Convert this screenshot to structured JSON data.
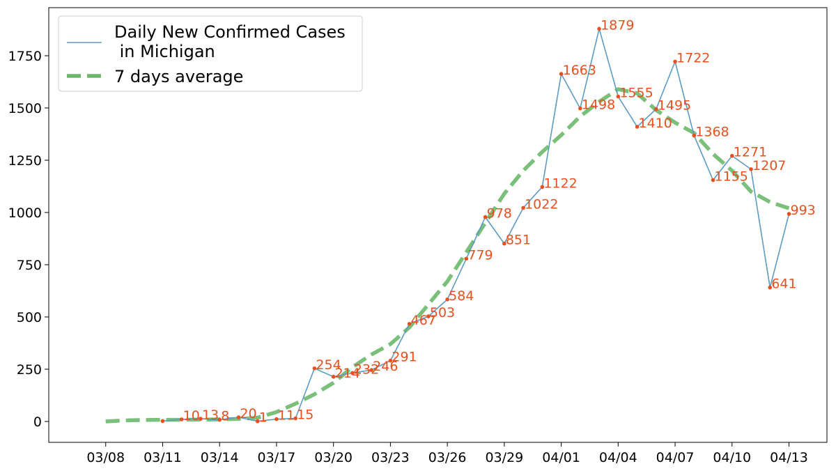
{
  "chart_data": {
    "type": "line",
    "title": "",
    "xlabel": "",
    "ylabel": "",
    "x_start": "03/08",
    "x_tick_labels": [
      "03/08",
      "03/11",
      "03/14",
      "03/17",
      "03/20",
      "03/23",
      "03/26",
      "03/29",
      "04/01",
      "04/04",
      "04/07",
      "04/10",
      "04/13"
    ],
    "xlim": [
      "03/05",
      "04/15"
    ],
    "y_ticks": [
      0,
      250,
      500,
      750,
      1000,
      1250,
      1500,
      1750
    ],
    "y_tick_labels": [
      "0",
      "250",
      "500",
      "750",
      "1000",
      "1250",
      "1500",
      "1750"
    ],
    "ylim": [
      -100,
      1980
    ],
    "grid": false,
    "legend": "top-left",
    "series": [
      {
        "name": "Daily New Confirmed Cases\n in Michigan",
        "color": "#5b9bc3",
        "style": "solid",
        "marker_color": "#e8501f",
        "label_color": "#e8501f",
        "x": [
          "03/11",
          "03/12",
          "03/13",
          "03/14",
          "03/15",
          "03/16",
          "03/17",
          "03/18",
          "03/19",
          "03/20",
          "03/21",
          "03/22",
          "03/23",
          "03/24",
          "03/25",
          "03/26",
          "03/27",
          "03/28",
          "03/29",
          "03/30",
          "03/31",
          "04/01",
          "04/02",
          "04/03",
          "04/04",
          "04/05",
          "04/06",
          "04/07",
          "04/08",
          "04/09",
          "04/10",
          "04/11",
          "04/12",
          "04/13"
        ],
        "values": [
          2,
          10,
          13,
          8,
          20,
          1,
          11,
          15,
          254,
          214,
          232,
          246,
          291,
          467,
          503,
          584,
          779,
          978,
          851,
          1022,
          1122,
          1663,
          1498,
          1879,
          1555,
          1410,
          1495,
          1722,
          1368,
          1155,
          1271,
          1207,
          641,
          993
        ],
        "labels": [
          "",
          "10",
          "13",
          "8",
          "20",
          "1",
          "11",
          "15",
          "254",
          "214",
          "232",
          "246",
          "291",
          "467",
          "503",
          "584",
          "779",
          "978",
          "851",
          "1022",
          "1122",
          "1663",
          "1498",
          "1879",
          "1555",
          "1410",
          "1495",
          "1722",
          "1368",
          "1155",
          "1271",
          "1207",
          "641",
          "993"
        ]
      },
      {
        "name": "7 days average",
        "color": "#6bb86b",
        "style": "dashed",
        "x": [
          "03/08",
          "03/09",
          "03/10",
          "03/11",
          "03/12",
          "03/13",
          "03/14",
          "03/15",
          "03/16",
          "03/17",
          "03/18",
          "03/19",
          "03/20",
          "03/21",
          "03/22",
          "03/23",
          "03/24",
          "03/25",
          "03/26",
          "03/27",
          "03/28",
          "03/29",
          "03/30",
          "03/31",
          "04/01",
          "04/02",
          "04/03",
          "04/04",
          "04/05",
          "04/06",
          "04/07",
          "04/08",
          "04/09",
          "04/10",
          "04/11",
          "04/12",
          "04/13"
        ],
        "values": [
          0,
          5,
          7,
          8,
          8,
          9,
          10,
          12,
          18,
          45,
          85,
          130,
          185,
          260,
          320,
          370,
          450,
          560,
          670,
          810,
          950,
          1090,
          1200,
          1290,
          1370,
          1460,
          1530,
          1590,
          1570,
          1490,
          1430,
          1380,
          1280,
          1200,
          1100,
          1050,
          1020
        ]
      }
    ]
  }
}
